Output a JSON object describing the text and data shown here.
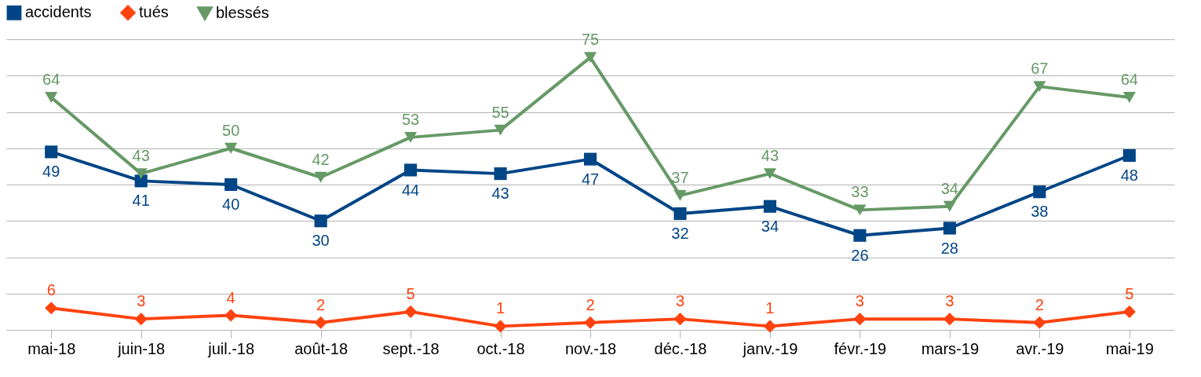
{
  "chart_data": {
    "type": "line",
    "categories": [
      "mai-18",
      "juin-18",
      "juil.-18",
      "août-18",
      "sept.-18",
      "oct.-18",
      "nov.-18",
      "déc.-18",
      "janv.-19",
      "févr.-19",
      "mars-19",
      "avr.-19",
      "mai-19"
    ],
    "series": [
      {
        "name": "accidents",
        "color": "#004586",
        "marker": "square",
        "values": [
          49,
          41,
          40,
          30,
          44,
          43,
          47,
          32,
          34,
          26,
          28,
          38,
          48
        ]
      },
      {
        "name": "tués",
        "color": "#ff420e",
        "marker": "diamond",
        "values": [
          6,
          3,
          4,
          2,
          5,
          1,
          2,
          3,
          1,
          3,
          3,
          2,
          5
        ]
      },
      {
        "name": "blessés",
        "color": "#669966",
        "marker": "triangle",
        "values": [
          64,
          43,
          50,
          42,
          53,
          55,
          75,
          37,
          43,
          33,
          34,
          67,
          64
        ]
      }
    ],
    "ylim": [
      0,
      80
    ],
    "yticks": [
      {
        "value": 0,
        "label": null
      },
      {
        "value": 10,
        "label": null
      },
      {
        "value": 20,
        "label": null
      },
      {
        "value": 30,
        "label": null
      },
      {
        "value": 40,
        "label": null
      },
      {
        "value": 50,
        "label": null
      },
      {
        "value": 60,
        "label": null
      },
      {
        "value": 70,
        "label": null
      },
      {
        "value": 80,
        "label": null
      }
    ],
    "tick_labels": "x",
    "grid": "y",
    "legend": "top",
    "data_labels": true,
    "line_style": "solid"
  }
}
